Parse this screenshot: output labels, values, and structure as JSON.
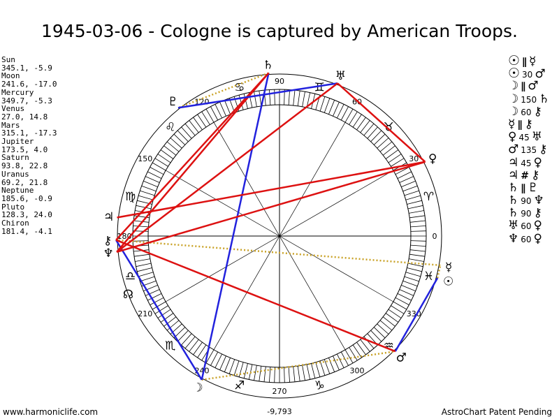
{
  "title": "1945-03-06 - Cologne is captured by American Troops.",
  "planets": [
    {
      "name": "Sun",
      "lon": 345.1,
      "lat": -5.9,
      "text": "345.1, -5.9",
      "glyph": "☉"
    },
    {
      "name": "Moon",
      "lon": 241.6,
      "lat": -17.0,
      "text": "241.6, -17.0",
      "glyph": "☽"
    },
    {
      "name": "Mercury",
      "lon": 349.7,
      "lat": -5.3,
      "text": "349.7, -5.3",
      "glyph": "☿"
    },
    {
      "name": "Venus",
      "lon": 27.0,
      "lat": 14.8,
      "text": "27.0, 14.8",
      "glyph": "♀"
    },
    {
      "name": "Mars",
      "lon": 315.1,
      "lat": -17.3,
      "text": "315.1, -17.3",
      "glyph": "♂"
    },
    {
      "name": "Jupiter",
      "lon": 173.5,
      "lat": 4.0,
      "text": "173.5, 4.0",
      "glyph": "♃"
    },
    {
      "name": "Saturn",
      "lon": 93.8,
      "lat": 22.8,
      "text": "93.8, 22.8",
      "glyph": "♄"
    },
    {
      "name": "Uranus",
      "lon": 69.2,
      "lat": 21.8,
      "text": "69.2, 21.8",
      "glyph": "♅"
    },
    {
      "name": "Neptune",
      "lon": 185.6,
      "lat": -0.9,
      "text": "185.6, -0.9",
      "glyph": "♆"
    },
    {
      "name": "Pluto",
      "lon": 128.3,
      "lat": 24.0,
      "text": "128.3, 24.0",
      "glyph": "♇"
    },
    {
      "name": "Chiron",
      "lon": 181.4,
      "lat": -4.1,
      "text": "181.4, -4.1",
      "glyph": "⚷"
    }
  ],
  "wheel_ticks": [
    "0",
    "30",
    "60",
    "90",
    "120",
    "150",
    "180",
    "210",
    "240",
    "270",
    "300",
    "330"
  ],
  "wheel_tick_values": [
    0,
    30,
    60,
    90,
    120,
    150,
    180,
    210,
    240,
    270,
    300,
    330
  ],
  "signs": [
    "♈",
    "♉",
    "♊",
    "♋",
    "♌",
    "♍",
    "♎",
    "♏",
    "♐",
    "♑",
    "♒",
    "♓"
  ],
  "sign_names": [
    "aries",
    "taurus",
    "gemini",
    "cancer",
    "leo",
    "virgo",
    "libra",
    "scorpio",
    "sagittarius",
    "capricorn",
    "aquarius",
    "pisces"
  ],
  "node_symbol": "☊",
  "center_value": "-9,793",
  "aspects": [
    {
      "a": "☉",
      "sym": "∥",
      "b": "☿",
      "a_name": "sun",
      "b_name": "mercury",
      "type": "parallel"
    },
    {
      "a": "☉",
      "sym": "30",
      "b": "♂",
      "a_name": "sun",
      "b_name": "mars",
      "type": "30"
    },
    {
      "a": "☽",
      "sym": "∥",
      "b": "♂",
      "a_name": "moon",
      "b_name": "mars",
      "type": "parallel"
    },
    {
      "a": "☽",
      "sym": "150",
      "b": "♄",
      "a_name": "moon",
      "b_name": "saturn",
      "type": "150"
    },
    {
      "a": "☽",
      "sym": "60",
      "b": "⚷",
      "a_name": "moon",
      "b_name": "chiron",
      "type": "60"
    },
    {
      "a": "☿",
      "sym": "∥",
      "b": "⚷",
      "a_name": "mercury",
      "b_name": "chiron",
      "type": "parallel"
    },
    {
      "a": "♀",
      "sym": "45",
      "b": "♅",
      "a_name": "venus",
      "b_name": "uranus",
      "type": "45"
    },
    {
      "a": "♂",
      "sym": "135",
      "b": "⚷",
      "a_name": "mars",
      "b_name": "chiron",
      "type": "135"
    },
    {
      "a": "♃",
      "sym": "45",
      "b": "♀",
      "a_name": "jupiter",
      "b_name": "venus",
      "type": "45"
    },
    {
      "a": "♃",
      "sym": "#",
      "b": "⚷",
      "a_name": "jupiter",
      "b_name": "chiron",
      "type": "contraparallel"
    },
    {
      "a": "♄",
      "sym": "∥",
      "b": "♇",
      "a_name": "saturn",
      "b_name": "pluto",
      "type": "parallel"
    },
    {
      "a": "♄",
      "sym": "90",
      "b": "♆",
      "a_name": "saturn",
      "b_name": "neptune",
      "type": "90"
    },
    {
      "a": "♄",
      "sym": "90",
      "b": "⚷",
      "a_name": "saturn",
      "b_name": "chiron",
      "type": "90"
    },
    {
      "a": "♅",
      "sym": "60",
      "b": "♀",
      "a_name": "uranus",
      "b_name": "venus",
      "type": "60"
    },
    {
      "a": "♆",
      "sym": "60",
      "b": "♀",
      "a_name": "neptune",
      "b_name": "venus",
      "type": "60"
    }
  ],
  "aspect_lines": [
    {
      "from": "Sun",
      "to": "Mars",
      "color": "#2222dd"
    },
    {
      "from": "Moon",
      "to": "Saturn",
      "color": "#2222dd"
    },
    {
      "from": "Moon",
      "to": "Chiron",
      "color": "#2222dd"
    },
    {
      "from": "Venus",
      "to": "Uranus",
      "color": "#dd1111"
    },
    {
      "from": "Mars",
      "to": "Chiron",
      "color": "#dd1111"
    },
    {
      "from": "Jupiter",
      "to": "Venus",
      "color": "#dd1111"
    },
    {
      "from": "Saturn",
      "to": "Neptune",
      "color": "#dd1111"
    },
    {
      "from": "Saturn",
      "to": "Chiron",
      "color": "#dd1111"
    },
    {
      "from": "Uranus",
      "to": "Pluto",
      "color": "#2222dd"
    },
    {
      "from": "Neptune",
      "to": "Venus",
      "color": "#dd1111"
    },
    {
      "from": "Neptune",
      "to": "Uranus",
      "color": "#dd1111"
    }
  ],
  "parallel_lines": [
    {
      "from": "Sun",
      "to": "Mercury",
      "color": "#c9a227"
    },
    {
      "from": "Mercury",
      "to": "Chiron",
      "color": "#c9a227"
    },
    {
      "from": "Saturn",
      "to": "Pluto",
      "color": "#c9a227"
    },
    {
      "from": "Moon",
      "to": "Mars",
      "color": "#c9a227"
    }
  ],
  "footer": {
    "left": "www.harmoniclife.com",
    "right": "AstroChart Patent Pending"
  }
}
